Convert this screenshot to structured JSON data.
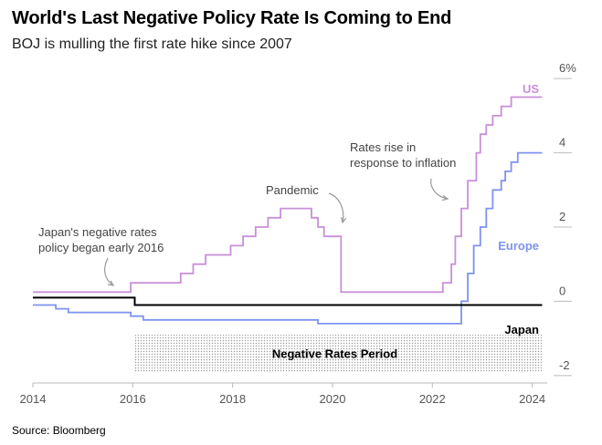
{
  "chart_data": {
    "type": "line",
    "step": true,
    "title": "World's Last Negative Policy Rate Is Coming to End",
    "subtitle": "BOJ is mulling the first rate hike since 2007",
    "source": "Source: Bloomberg",
    "xlim": [
      2014,
      2024.3
    ],
    "ylim": [
      -2.2,
      6.2
    ],
    "x_ticks": [
      {
        "value": 2014,
        "label": "2014"
      },
      {
        "value": 2016,
        "label": "2016"
      },
      {
        "value": 2018,
        "label": "2018"
      },
      {
        "value": 2020,
        "label": "2020"
      },
      {
        "value": 2022,
        "label": "2022"
      },
      {
        "value": 2024,
        "label": "2024"
      }
    ],
    "y_ticks": [
      {
        "value": 6,
        "label": "6%"
      },
      {
        "value": 4,
        "label": "4"
      },
      {
        "value": 2,
        "label": "2"
      },
      {
        "value": 0,
        "label": "0"
      },
      {
        "value": -2,
        "label": "-2"
      }
    ],
    "series": [
      {
        "name": "US",
        "color": "#c98fd9",
        "points": [
          [
            2014,
            0.25
          ],
          [
            2015.96,
            0.5
          ],
          [
            2016.96,
            0.75
          ],
          [
            2017.21,
            1.0
          ],
          [
            2017.46,
            1.25
          ],
          [
            2017.96,
            1.5
          ],
          [
            2018.21,
            1.75
          ],
          [
            2018.46,
            2.0
          ],
          [
            2018.71,
            2.25
          ],
          [
            2018.96,
            2.5
          ],
          [
            2019.58,
            2.25
          ],
          [
            2019.71,
            2.0
          ],
          [
            2019.83,
            1.75
          ],
          [
            2020.17,
            0.25
          ],
          [
            2022.21,
            0.5
          ],
          [
            2022.38,
            1.0
          ],
          [
            2022.46,
            1.75
          ],
          [
            2022.58,
            2.5
          ],
          [
            2022.71,
            3.25
          ],
          [
            2022.88,
            4.0
          ],
          [
            2022.96,
            4.5
          ],
          [
            2023.08,
            4.75
          ],
          [
            2023.21,
            5.0
          ],
          [
            2023.38,
            5.25
          ],
          [
            2023.58,
            5.5
          ],
          [
            2024.2,
            5.5
          ]
        ]
      },
      {
        "name": "Europe",
        "color": "#7e93ef",
        "points": [
          [
            2014,
            -0.1
          ],
          [
            2014.46,
            -0.2
          ],
          [
            2014.71,
            -0.3
          ],
          [
            2015.96,
            -0.4
          ],
          [
            2016.21,
            -0.5
          ],
          [
            2019.71,
            -0.6
          ],
          [
            2022.58,
            0.0
          ],
          [
            2022.71,
            0.75
          ],
          [
            2022.83,
            1.5
          ],
          [
            2022.96,
            2.0
          ],
          [
            2023.08,
            2.5
          ],
          [
            2023.21,
            3.0
          ],
          [
            2023.38,
            3.25
          ],
          [
            2023.46,
            3.5
          ],
          [
            2023.58,
            3.75
          ],
          [
            2023.71,
            4.0
          ],
          [
            2024.2,
            4.0
          ]
        ]
      },
      {
        "name": "Japan",
        "color": "#000000",
        "points": [
          [
            2014,
            0.1
          ],
          [
            2016.04,
            -0.1
          ],
          [
            2024.2,
            -0.1
          ]
        ]
      }
    ],
    "shaded_region": {
      "label": "Negative Rates Period",
      "x_start": 2016.04,
      "x_end": 2024.2
    },
    "annotations": [
      {
        "lines": [
          "Japan's negative rates",
          "policy began early 2016"
        ]
      },
      {
        "lines": [
          "Pandemic"
        ]
      },
      {
        "lines": [
          "Rates rise in",
          "response to inflation"
        ]
      }
    ]
  }
}
